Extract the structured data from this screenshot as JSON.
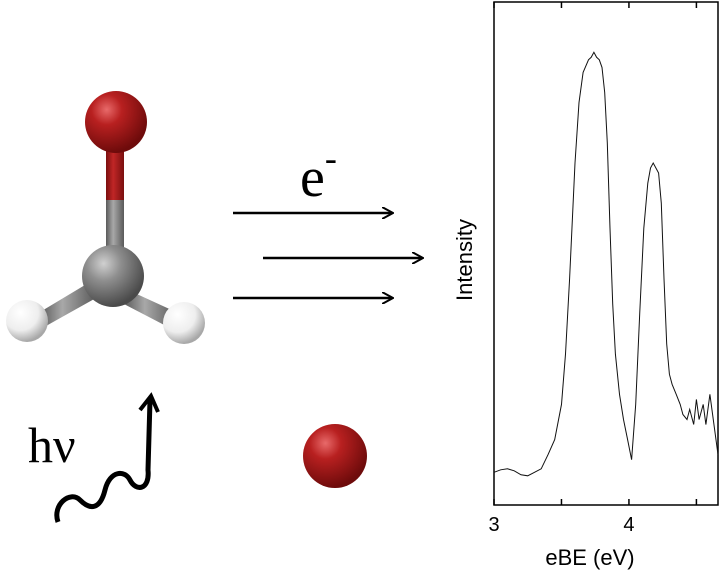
{
  "labels": {
    "electron": "e",
    "electron_sup": "-",
    "photon": "hν"
  },
  "colors": {
    "oxygen": "#b01c1c",
    "carbon": "#8a8a8a",
    "hydrogen": "#f2f2f2",
    "line": "#000000"
  },
  "chart_data": {
    "type": "line",
    "title": "",
    "xlabel": "eBE (eV)",
    "ylabel": "Intensity",
    "xlim": [
      3.0,
      4.66
    ],
    "ylim": [
      0,
      1
    ],
    "xticks": [
      3,
      3.5,
      4,
      4.5
    ],
    "xtick_labels": [
      "3",
      "",
      "4",
      ""
    ],
    "grid": false,
    "series": [
      {
        "x": [
          3.0,
          3.05,
          3.1,
          3.15,
          3.2,
          3.25,
          3.3,
          3.35,
          3.4,
          3.45,
          3.5,
          3.53,
          3.56,
          3.6,
          3.63,
          3.66,
          3.7,
          3.72,
          3.74,
          3.76,
          3.78,
          3.8,
          3.82,
          3.84,
          3.86,
          3.88,
          3.9,
          3.93,
          3.96,
          3.99,
          4.02,
          4.05,
          4.08,
          4.11,
          4.14,
          4.16,
          4.18,
          4.2,
          4.22,
          4.24,
          4.26,
          4.28,
          4.3,
          4.32,
          4.35,
          4.38,
          4.4,
          4.43,
          4.45,
          4.48,
          4.5,
          4.52,
          4.55,
          4.57,
          4.6,
          4.62,
          4.64,
          4.66
        ],
        "y": [
          0.065,
          0.07,
          0.072,
          0.068,
          0.06,
          0.058,
          0.065,
          0.072,
          0.1,
          0.13,
          0.2,
          0.3,
          0.45,
          0.68,
          0.8,
          0.86,
          0.885,
          0.89,
          0.9,
          0.89,
          0.885,
          0.87,
          0.82,
          0.72,
          0.55,
          0.4,
          0.3,
          0.22,
          0.17,
          0.13,
          0.09,
          0.2,
          0.38,
          0.55,
          0.64,
          0.67,
          0.68,
          0.67,
          0.66,
          0.6,
          0.45,
          0.32,
          0.26,
          0.24,
          0.22,
          0.2,
          0.18,
          0.17,
          0.19,
          0.16,
          0.21,
          0.17,
          0.2,
          0.16,
          0.22,
          0.18,
          0.14,
          0.1
        ]
      }
    ]
  }
}
